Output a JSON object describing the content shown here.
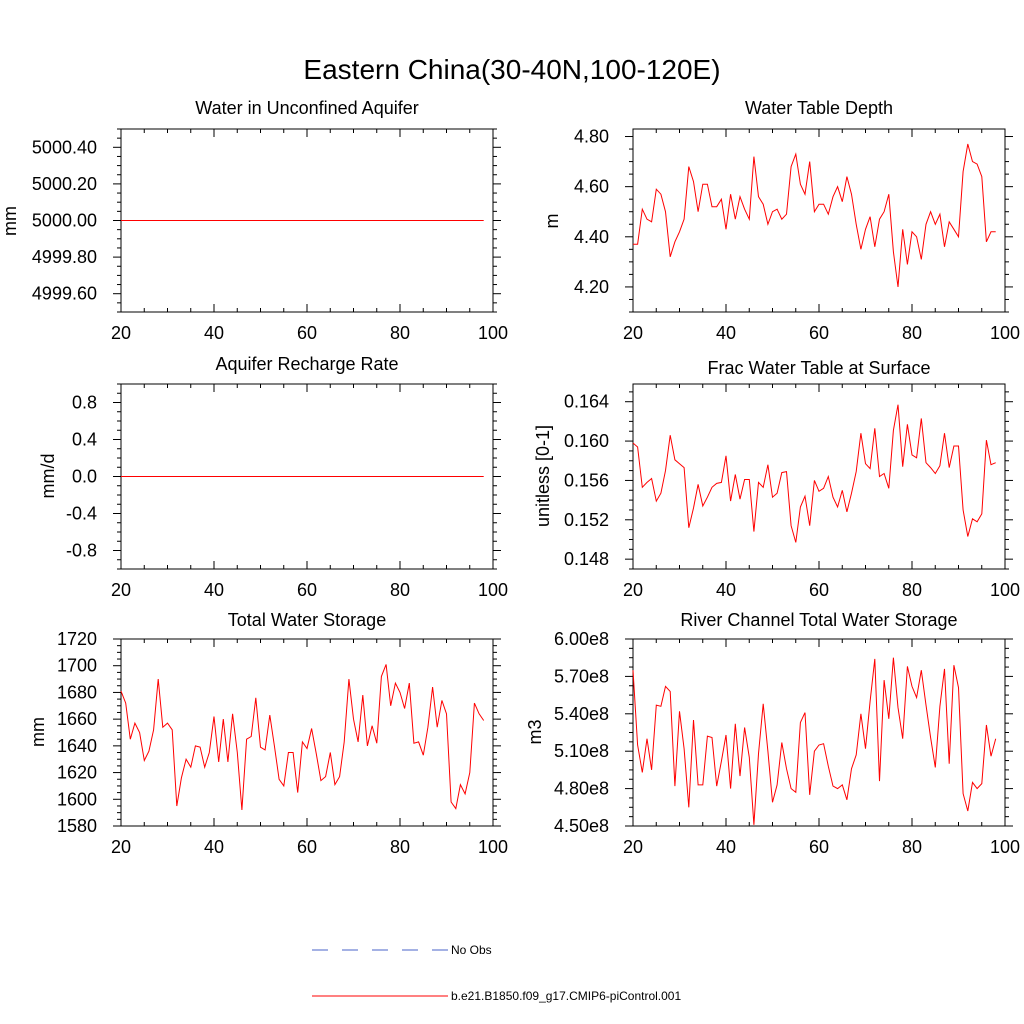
{
  "figure": {
    "title": "Eastern China(30-40N,100-120E)"
  },
  "legend": {
    "items": [
      {
        "label": "No Obs",
        "color": "#4a63c8",
        "style": "dashed"
      },
      {
        "label": "b.e21.B1850.f09_g17.CMIP6-piControl.001",
        "color": "#ff0000",
        "style": "solid"
      }
    ]
  },
  "chart_data": [
    {
      "type": "line",
      "title": "Water in Unconfined Aquifer",
      "ylabel": "mm",
      "xlabel": "",
      "xlim": [
        20,
        100
      ],
      "ylim": [
        4999.5,
        5000.5
      ],
      "xticks": [
        20,
        40,
        60,
        80,
        100
      ],
      "xtick_labels": [
        "20",
        "40",
        "60",
        "80",
        "100"
      ],
      "yticks": [
        4999.6,
        4999.8,
        5000.0,
        5000.2,
        5000.4
      ],
      "ytick_labels": [
        "4999.60",
        "4999.80",
        "5000.00",
        "5000.20",
        "5000.40"
      ],
      "x_start": 20,
      "series": [
        {
          "name": "b.e21.B1850.f09_g17.CMIP6-piControl.001",
          "color": "#ff0000",
          "x": [
            20,
            98
          ],
          "values": [
            5000.0,
            5000.0
          ]
        }
      ]
    },
    {
      "type": "line",
      "title": "Water Table Depth",
      "ylabel": "m",
      "xlabel": "",
      "xlim": [
        20,
        100
      ],
      "ylim": [
        4.1,
        4.83
      ],
      "xticks": [
        20,
        40,
        60,
        80,
        100
      ],
      "xtick_labels": [
        "20",
        "40",
        "60",
        "80",
        "100"
      ],
      "yticks": [
        4.2,
        4.4,
        4.6,
        4.8
      ],
      "ytick_labels": [
        "4.20",
        "4.40",
        "4.60",
        "4.80"
      ],
      "x_start": 20,
      "series": [
        {
          "name": "b.e21.B1850.f09_g17.CMIP6-piControl.001",
          "color": "#ff0000",
          "values": [
            4.37,
            4.37,
            4.51,
            4.47,
            4.46,
            4.59,
            4.57,
            4.5,
            4.32,
            4.38,
            4.42,
            4.47,
            4.68,
            4.62,
            4.5,
            4.61,
            4.61,
            4.52,
            4.52,
            4.55,
            4.43,
            4.57,
            4.47,
            4.56,
            4.51,
            4.47,
            4.72,
            4.56,
            4.53,
            4.45,
            4.5,
            4.51,
            4.47,
            4.49,
            4.68,
            4.73,
            4.61,
            4.57,
            4.7,
            4.5,
            4.53,
            4.53,
            4.49,
            4.56,
            4.6,
            4.54,
            4.64,
            4.57,
            4.45,
            4.35,
            4.43,
            4.48,
            4.36,
            4.47,
            4.5,
            4.57,
            4.34,
            4.2,
            4.43,
            4.29,
            4.42,
            4.4,
            4.31,
            4.45,
            4.5,
            4.45,
            4.49,
            4.36,
            4.46,
            4.43,
            4.4,
            4.66,
            4.77,
            4.7,
            4.69,
            4.64,
            4.38,
            4.42,
            4.42
          ]
        }
      ]
    },
    {
      "type": "line",
      "title": "Aquifer Recharge Rate",
      "ylabel": "mm/d",
      "xlabel": "",
      "xlim": [
        20,
        100
      ],
      "ylim": [
        -1.0,
        1.0
      ],
      "xticks": [
        20,
        40,
        60,
        80,
        100
      ],
      "xtick_labels": [
        "20",
        "40",
        "60",
        "80",
        "100"
      ],
      "yticks": [
        -0.8,
        -0.4,
        0.0,
        0.4,
        0.8
      ],
      "ytick_labels": [
        "-0.8",
        "-0.4",
        "0.0",
        "0.4",
        "0.8"
      ],
      "x_start": 20,
      "series": [
        {
          "name": "b.e21.B1850.f09_g17.CMIP6-piControl.001",
          "color": "#ff0000",
          "x": [
            20,
            98
          ],
          "values": [
            0.0,
            0.0
          ]
        }
      ]
    },
    {
      "type": "line",
      "title": "Frac Water Table at Surface",
      "ylabel": "unitless [0-1]",
      "xlabel": "",
      "xlim": [
        20,
        100
      ],
      "ylim": [
        0.147,
        0.1658
      ],
      "xticks": [
        20,
        40,
        60,
        80,
        100
      ],
      "xtick_labels": [
        "20",
        "40",
        "60",
        "80",
        "100"
      ],
      "yticks": [
        0.148,
        0.152,
        0.156,
        0.16,
        0.164
      ],
      "ytick_labels": [
        "0.148",
        "0.152",
        "0.156",
        "0.160",
        "0.164"
      ],
      "x_start": 20,
      "series": [
        {
          "name": "b.e21.B1850.f09_g17.CMIP6-piControl.001",
          "color": "#ff0000",
          "values": [
            0.1598,
            0.1594,
            0.1553,
            0.1558,
            0.1562,
            0.1539,
            0.1547,
            0.157,
            0.1606,
            0.1581,
            0.1577,
            0.1573,
            0.1512,
            0.1532,
            0.1556,
            0.1534,
            0.1543,
            0.1553,
            0.1557,
            0.1558,
            0.1585,
            0.1539,
            0.1566,
            0.1541,
            0.1561,
            0.1561,
            0.1508,
            0.1558,
            0.1553,
            0.1576,
            0.1543,
            0.1547,
            0.1568,
            0.1569,
            0.1514,
            0.1497,
            0.1533,
            0.1544,
            0.1514,
            0.156,
            0.1549,
            0.1552,
            0.1564,
            0.1543,
            0.1533,
            0.155,
            0.1528,
            0.1547,
            0.1569,
            0.1608,
            0.1577,
            0.1572,
            0.1613,
            0.1564,
            0.1567,
            0.1552,
            0.1611,
            0.1637,
            0.1574,
            0.1617,
            0.1586,
            0.1583,
            0.1623,
            0.1578,
            0.1573,
            0.1567,
            0.1575,
            0.1608,
            0.1573,
            0.1595,
            0.1595,
            0.153,
            0.1503,
            0.1521,
            0.1518,
            0.1526,
            0.1601,
            0.1576,
            0.1578
          ]
        }
      ]
    },
    {
      "type": "line",
      "title": "Total Water Storage",
      "ylabel": "mm",
      "xlabel": "",
      "xlim": [
        20,
        100
      ],
      "ylim": [
        1580,
        1720
      ],
      "xticks": [
        20,
        40,
        60,
        80,
        100
      ],
      "xtick_labels": [
        "20",
        "40",
        "60",
        "80",
        "100"
      ],
      "yticks": [
        1580,
        1600,
        1620,
        1640,
        1660,
        1680,
        1700,
        1720
      ],
      "ytick_labels": [
        "1580",
        "1600",
        "1620",
        "1640",
        "1660",
        "1680",
        "1700",
        "1720"
      ],
      "x_start": 20,
      "series": [
        {
          "name": "b.e21.B1850.f09_g17.CMIP6-piControl.001",
          "color": "#ff0000",
          "values": [
            1681,
            1672,
            1645,
            1657,
            1650,
            1629,
            1636,
            1652,
            1690,
            1654,
            1657,
            1652,
            1595,
            1616,
            1630,
            1624,
            1640,
            1639,
            1624,
            1635,
            1662,
            1628,
            1660,
            1628,
            1664,
            1635,
            1592,
            1645,
            1647,
            1676,
            1639,
            1637,
            1663,
            1640,
            1615,
            1610,
            1635,
            1635,
            1605,
            1643,
            1638,
            1653,
            1634,
            1614,
            1617,
            1635,
            1611,
            1617,
            1643,
            1690,
            1660,
            1643,
            1678,
            1640,
            1655,
            1642,
            1692,
            1701,
            1670,
            1687,
            1680,
            1668,
            1687,
            1642,
            1643,
            1633,
            1654,
            1684,
            1654,
            1674,
            1664,
            1598,
            1593,
            1611,
            1604,
            1620,
            1672,
            1664,
            1659
          ]
        }
      ]
    },
    {
      "type": "line",
      "title": "River Channel Total Water Storage",
      "ylabel": "m3",
      "xlabel": "",
      "xlim": [
        20,
        100
      ],
      "ylim": [
        450000000,
        600000000
      ],
      "xticks": [
        20,
        40,
        60,
        80,
        100
      ],
      "xtick_labels": [
        "20",
        "40",
        "60",
        "80",
        "100"
      ],
      "yticks": [
        450000000,
        480000000,
        510000000,
        540000000,
        570000000,
        600000000
      ],
      "ytick_labels": [
        "4.50e8",
        "4.80e8",
        "5.10e8",
        "5.40e8",
        "5.70e8",
        "6.00e8"
      ],
      "x_start": 20,
      "series": [
        {
          "name": "b.e21.B1850.f09_g17.CMIP6-piControl.001",
          "color": "#ff0000",
          "values": [
            575000000,
            515000000,
            493000000,
            520000000,
            495000000,
            547000000,
            546000000,
            562000000,
            558000000,
            482000000,
            542000000,
            512000000,
            465000000,
            535000000,
            483000000,
            483000000,
            522000000,
            521000000,
            482000000,
            502000000,
            523000000,
            480000000,
            532000000,
            490000000,
            529000000,
            505000000,
            451000000,
            508000000,
            548000000,
            510000000,
            469000000,
            483000000,
            517000000,
            496000000,
            480000000,
            477000000,
            533000000,
            541000000,
            475000000,
            510000000,
            515000000,
            516000000,
            498000000,
            482000000,
            480000000,
            483000000,
            471000000,
            496000000,
            507000000,
            540000000,
            512000000,
            550000000,
            584000000,
            486000000,
            567000000,
            536000000,
            585000000,
            545000000,
            520000000,
            578000000,
            562000000,
            553000000,
            575000000,
            547000000,
            521000000,
            497000000,
            546000000,
            576000000,
            500000000,
            579000000,
            561000000,
            476000000,
            462000000,
            485000000,
            480000000,
            484000000,
            531000000,
            506000000,
            520000000
          ]
        }
      ]
    }
  ]
}
